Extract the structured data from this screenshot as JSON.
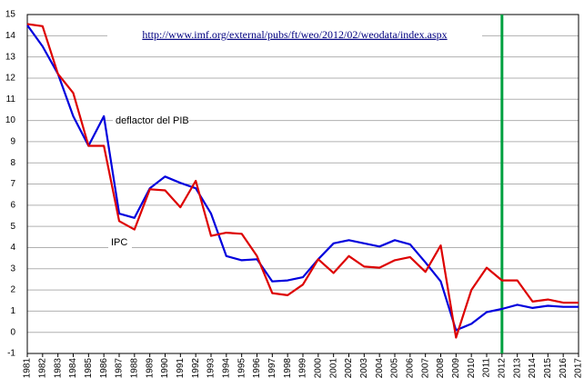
{
  "chart_data": {
    "type": "line",
    "annotation": "http://www.imf.org/external/pubs/ft/weo/2012/02/weodata/index.aspx",
    "categories": [
      "1981",
      "1982",
      "1983",
      "1984",
      "1985",
      "1986",
      "1987",
      "1988",
      "1989",
      "1990",
      "1991",
      "1992",
      "1993",
      "1994",
      "1995",
      "1996",
      "1997",
      "1998",
      "1999",
      "2000",
      "2001",
      "2002",
      "2003",
      "2004",
      "2005",
      "2006",
      "2007",
      "2008",
      "2009",
      "2010",
      "2011",
      "2012",
      "2013",
      "2014",
      "2015",
      "2016",
      "2017"
    ],
    "series": [
      {
        "name": "deflactor del PIB",
        "color": "#0000dd",
        "values": [
          14.5,
          13.5,
          12.2,
          10.2,
          8.8,
          10.2,
          5.6,
          5.4,
          6.8,
          7.35,
          7.05,
          6.8,
          5.6,
          3.6,
          3.4,
          3.45,
          2.4,
          2.45,
          2.6,
          3.45,
          4.2,
          4.35,
          4.2,
          4.05,
          4.35,
          4.15,
          3.3,
          2.4,
          0.1,
          0.4,
          0.95,
          1.1,
          1.3,
          1.15,
          1.25,
          1.2,
          1.2
        ]
      },
      {
        "name": "IPC",
        "color": "#dd0000",
        "values": [
          14.55,
          14.45,
          12.2,
          11.3,
          8.8,
          8.8,
          5.25,
          4.85,
          6.75,
          6.7,
          5.9,
          7.15,
          4.55,
          4.7,
          4.65,
          3.6,
          1.85,
          1.75,
          2.25,
          3.45,
          2.8,
          3.6,
          3.1,
          3.05,
          3.4,
          3.55,
          2.85,
          4.1,
          -0.25,
          2.0,
          3.05,
          2.45,
          2.45,
          1.45,
          1.55,
          1.4,
          1.4
        ]
      }
    ],
    "vline": "2012",
    "vline_color": "#00a040",
    "ylim": [
      -1,
      15
    ],
    "yticks": [
      -1,
      0,
      1,
      2,
      3,
      4,
      5,
      6,
      7,
      8,
      9,
      10,
      11,
      12,
      13,
      14,
      15
    ],
    "grid": true
  }
}
